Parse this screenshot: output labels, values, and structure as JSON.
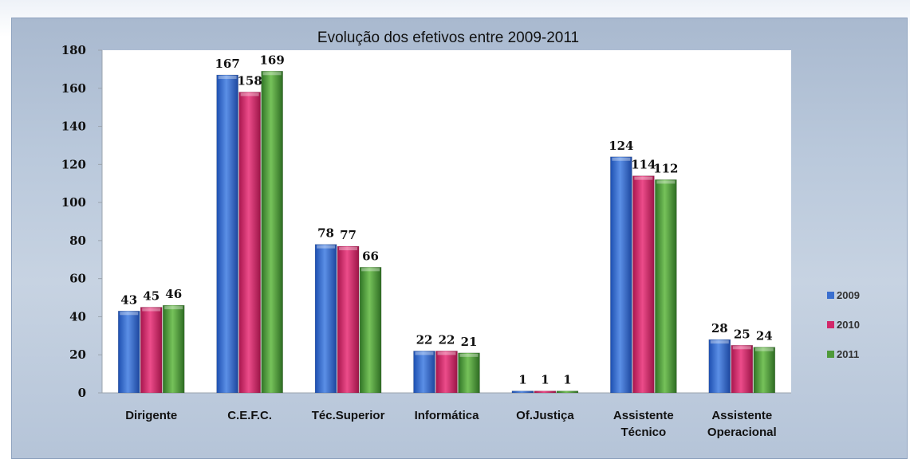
{
  "chart_data": {
    "type": "bar",
    "title": "Evolução dos efetivos entre 2009-2011",
    "categories": [
      "Dirigente",
      "C.E.F.C.",
      "Téc.Superior",
      "Informática",
      "Of.Justiça",
      "Assistente Técnico",
      "Assistente Operacional"
    ],
    "category_lines": [
      [
        "Dirigente"
      ],
      [
        "C.E.F.C."
      ],
      [
        "Téc.Superior"
      ],
      [
        "Informática"
      ],
      [
        "Of.Justiça"
      ],
      [
        "Assistente",
        "Técnico"
      ],
      [
        "Assistente",
        "Operacional"
      ]
    ],
    "series": [
      {
        "name": "2009",
        "values": [
          43,
          167,
          78,
          22,
          1,
          124,
          28
        ],
        "color": "#3a6fcf"
      },
      {
        "name": "2010",
        "values": [
          45,
          158,
          77,
          22,
          1,
          114,
          25
        ],
        "color": "#d2286a"
      },
      {
        "name": "2011",
        "values": [
          46,
          169,
          66,
          21,
          1,
          112,
          24
        ],
        "color": "#4f9a3a"
      }
    ],
    "ylim": [
      0,
      180
    ],
    "yticks": [
      0,
      20,
      40,
      60,
      80,
      100,
      120,
      140,
      160,
      180
    ],
    "grid": false,
    "legend": "right",
    "plot_background": "#ffffff"
  }
}
